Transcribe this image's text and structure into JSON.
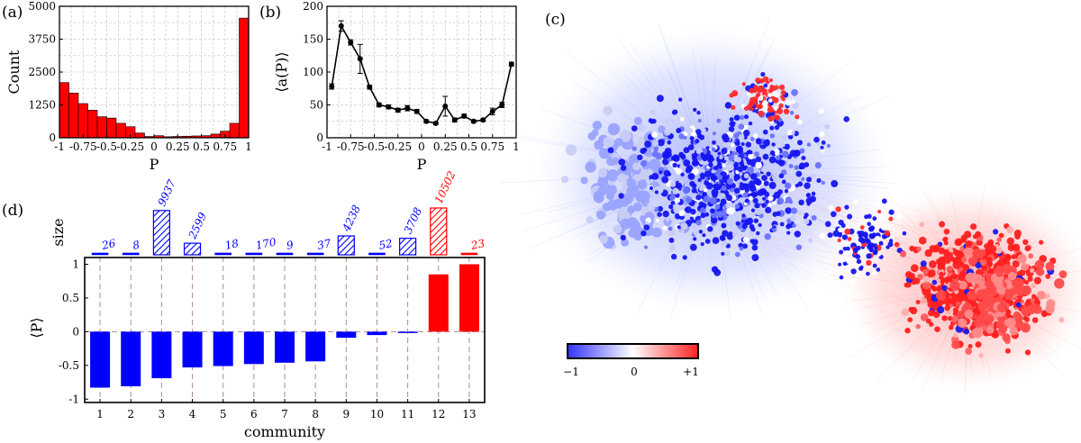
{
  "panels": {
    "a": "(a)",
    "b": "(b)",
    "c": "(c)",
    "d": "(d)"
  },
  "colors": {
    "red": "#ff0000",
    "blue": "#0000ff",
    "grid": "#cfcfcf",
    "error": "#000000"
  },
  "chart_data": [
    {
      "id": "a",
      "type": "bar",
      "xlabel": "P",
      "ylabel": "Count",
      "xlim": [
        -1,
        1
      ],
      "ylim": [
        0,
        5000
      ],
      "xticks": [
        "-1",
        "-0.75",
        "-0.5",
        "-0.25",
        "0",
        "0.25",
        "0.5",
        "0.75",
        "1"
      ],
      "xtick_values": [
        -1,
        -0.75,
        -0.5,
        -0.25,
        0,
        0.25,
        0.5,
        0.75,
        1
      ],
      "yticks": [
        "0",
        "1250",
        "2500",
        "3750",
        "5000"
      ],
      "ytick_values": [
        0,
        1250,
        2500,
        3750,
        5000
      ],
      "grid": true,
      "bin_width": 0.1,
      "bin_starts": [
        -1,
        -0.9,
        -0.8,
        -0.7,
        -0.6,
        -0.5,
        -0.4,
        -0.3,
        -0.2,
        -0.1,
        0,
        0.1,
        0.2,
        0.3,
        0.4,
        0.5,
        0.6,
        0.7,
        0.8,
        0.9
      ],
      "values": [
        2100,
        1700,
        1300,
        1050,
        800,
        750,
        550,
        420,
        180,
        50,
        80,
        40,
        50,
        60,
        70,
        80,
        140,
        250,
        550,
        4550
      ]
    },
    {
      "id": "b",
      "type": "line",
      "xlabel": "P",
      "ylabel": "⟨a(P)⟩",
      "xlim": [
        -1,
        1
      ],
      "ylim": [
        0,
        200
      ],
      "xticks": [
        "-1",
        "-0.75",
        "-0.5",
        "-0.25",
        "0",
        "0.25",
        "0.5",
        "0.75",
        "1"
      ],
      "xtick_values": [
        -1,
        -0.75,
        -0.5,
        -0.25,
        0,
        0.25,
        0.5,
        0.75,
        1
      ],
      "yticks": [
        "0",
        "50",
        "100",
        "150",
        "200"
      ],
      "ytick_values": [
        0,
        50,
        100,
        150,
        200
      ],
      "grid": true,
      "x": [
        -0.95,
        -0.85,
        -0.75,
        -0.65,
        -0.55,
        -0.45,
        -0.35,
        -0.25,
        -0.15,
        -0.05,
        0.05,
        0.15,
        0.25,
        0.35,
        0.45,
        0.55,
        0.65,
        0.75,
        0.85,
        0.95
      ],
      "y": [
        78,
        170,
        145,
        120,
        77,
        50,
        47,
        42,
        45,
        40,
        25,
        22,
        48,
        27,
        33,
        25,
        27,
        40,
        50,
        112
      ],
      "err": [
        4,
        8,
        4,
        22,
        3,
        3,
        3,
        3,
        4,
        3,
        2,
        2,
        15,
        3,
        3,
        2,
        2,
        5,
        4,
        3
      ]
    },
    {
      "id": "d",
      "type": "bar",
      "xlabel": "community",
      "ylabel": "⟨P⟩",
      "size_label": "size",
      "categories": [
        "1",
        "2",
        "3",
        "4",
        "5",
        "6",
        "7",
        "8",
        "9",
        "10",
        "11",
        "12",
        "13"
      ],
      "values": [
        -0.83,
        -0.81,
        -0.69,
        -0.53,
        -0.51,
        -0.48,
        -0.46,
        -0.44,
        -0.09,
        -0.05,
        -0.02,
        0.85,
        1.0
      ],
      "sizes": [
        "26",
        "8",
        "9937",
        "2599",
        "18",
        "170",
        "9",
        "37",
        "4238",
        "52",
        "3708",
        "10502",
        "23"
      ],
      "size_values": [
        26,
        8,
        9937,
        2599,
        18,
        170,
        9,
        37,
        4238,
        52,
        3708,
        10502,
        23
      ],
      "ylim": [
        -1.05,
        1.1
      ],
      "yticks": [
        "-1",
        "-0.5",
        "0",
        "0.5",
        "1"
      ],
      "ytick_values": [
        -1,
        -0.5,
        0,
        0.5,
        1
      ]
    },
    {
      "id": "c",
      "type": "scatter",
      "description_role": "network visualization colored by P",
      "colorbar_ticks": [
        "−1",
        "0",
        "+1"
      ],
      "colorbar_values": [
        -1,
        0,
        1
      ],
      "colorbar_colors": [
        "#3333ff",
        "#ffffff",
        "#ff2222"
      ]
    }
  ]
}
